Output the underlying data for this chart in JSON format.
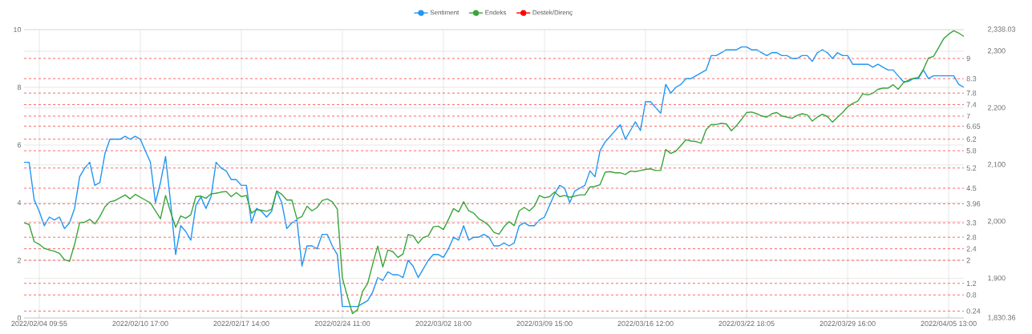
{
  "chart_data": {
    "type": "line",
    "ylim": [
      0,
      10
    ],
    "y2lim": [
      1830.36,
      2338.03
    ],
    "categories": [
      null,
      null,
      null,
      "2022/02/04 09:55",
      null,
      null,
      null,
      null,
      null,
      null,
      null,
      null,
      null,
      null,
      null,
      null,
      null,
      null,
      null,
      null,
      null,
      null,
      null,
      "2022/02/10 17:00",
      null,
      null,
      null,
      null,
      null,
      null,
      null,
      null,
      null,
      null,
      null,
      null,
      null,
      null,
      null,
      null,
      null,
      null,
      null,
      "2022/02/17 14:00",
      null,
      null,
      null,
      null,
      null,
      null,
      null,
      null,
      null,
      null,
      null,
      null,
      null,
      null,
      null,
      null,
      null,
      null,
      null,
      "2022/02/24 11:00",
      null,
      null,
      null,
      null,
      null,
      null,
      null,
      null,
      null,
      null,
      null,
      null,
      null,
      null,
      null,
      null,
      null,
      null,
      null,
      "2022/03/02 18:00",
      null,
      null,
      null,
      null,
      null,
      null,
      null,
      null,
      null,
      null,
      null,
      null,
      null,
      null,
      null,
      null,
      null,
      null,
      null,
      "2022/03/09 15:00",
      null,
      null,
      null,
      null,
      null,
      null,
      null,
      null,
      null,
      null,
      null,
      null,
      null,
      null,
      null,
      null,
      null,
      null,
      null,
      "2022/03/16 12:00",
      null,
      null,
      null,
      null,
      null,
      null,
      null,
      null,
      null,
      null,
      null,
      null,
      null,
      null,
      null,
      null,
      null,
      null,
      null,
      "2022/03/22 18:05",
      null,
      null,
      null,
      null,
      null,
      null,
      null,
      null,
      null,
      null,
      null,
      null,
      null,
      null,
      null,
      null,
      null,
      null,
      null,
      "2022/03/29 16:00",
      null,
      null,
      null,
      null,
      null,
      null,
      null,
      null,
      null,
      null,
      null,
      null,
      null,
      null,
      null,
      null,
      null,
      null,
      null,
      "2022/04/05 13:00",
      null,
      null,
      null
    ],
    "yticks": [
      0,
      2,
      4,
      6,
      8,
      10
    ],
    "y2ticks": [
      {
        "value": 1830.36,
        "label": "1,830.36"
      },
      {
        "value": 1900,
        "label": "1,900"
      },
      {
        "value": 2000,
        "label": "2,000"
      },
      {
        "value": 2100,
        "label": "2,100"
      },
      {
        "value": 2200,
        "label": "2,200"
      },
      {
        "value": 2300,
        "label": "2,300"
      },
      {
        "value": 2338.03,
        "label": "2,338.03"
      }
    ],
    "grid": true,
    "legend": "top",
    "line_style": "solid",
    "series": [
      {
        "name": "Sentiment",
        "color": "#2196f3",
        "values": [
          5.4,
          5.4,
          4.1,
          3.7,
          3.2,
          3.5,
          3.4,
          3.5,
          3.1,
          3.3,
          3.8,
          4.9,
          5.2,
          5.4,
          4.6,
          4.7,
          5.7,
          6.2,
          6.2,
          6.2,
          6.3,
          6.2,
          6.3,
          6.2,
          5.8,
          5.4,
          4.0,
          4.7,
          5.6,
          4.0,
          2.2,
          3.2,
          3.0,
          2.7,
          3.9,
          4.2,
          3.8,
          4.2,
          5.4,
          5.2,
          5.1,
          4.8,
          4.8,
          4.6,
          4.6,
          3.3,
          3.8,
          3.7,
          3.5,
          3.7,
          4.4,
          4.0,
          3.1,
          3.3,
          3.4,
          1.8,
          2.5,
          2.5,
          2.4,
          2.9,
          2.9,
          2.5,
          2.2,
          0.4,
          0.4,
          0.4,
          0.4,
          0.5,
          0.6,
          0.9,
          1.4,
          1.3,
          1.6,
          1.5,
          1.5,
          1.4,
          2.0,
          1.8,
          1.4,
          1.7,
          2.0,
          2.2,
          2.2,
          2.1,
          2.4,
          2.8,
          2.7,
          3.2,
          2.7,
          2.8,
          2.8,
          2.9,
          2.8,
          2.5,
          2.5,
          2.6,
          2.5,
          2.6,
          3.2,
          3.3,
          3.2,
          3.2,
          3.4,
          3.5,
          3.9,
          4.3,
          4.6,
          4.5,
          4.0,
          4.4,
          4.5,
          4.6,
          5.1,
          4.9,
          5.8,
          6.1,
          6.3,
          6.5,
          6.7,
          6.2,
          6.5,
          6.8,
          6.5,
          7.5,
          7.5,
          7.3,
          7.1,
          8.1,
          7.8,
          8.0,
          8.1,
          8.3,
          8.3,
          8.4,
          8.5,
          8.6,
          9.1,
          9.1,
          9.2,
          9.3,
          9.3,
          9.3,
          9.4,
          9.4,
          9.3,
          9.3,
          9.2,
          9.1,
          9.2,
          9.2,
          9.1,
          9.1,
          9.0,
          9.0,
          9.1,
          9.1,
          8.9,
          9.2,
          9.3,
          9.2,
          9.0,
          9.2,
          9.1,
          9.1,
          8.8,
          8.8,
          8.8,
          8.8,
          8.7,
          8.8,
          8.7,
          8.6,
          8.6,
          8.4,
          8.2,
          8.2,
          8.3,
          8.3,
          8.6,
          8.3,
          8.4,
          8.4,
          8.4,
          8.4,
          8.4,
          8.1,
          8.0
        ]
      },
      {
        "name": "Endeks",
        "color": "#3aa53a",
        "axis": "y2",
        "values": [
          1998,
          1995,
          1965,
          1960,
          1953,
          1950,
          1948,
          1944,
          1933,
          1930,
          1960,
          1998,
          1999,
          2004,
          1996,
          2009,
          2026,
          2035,
          2037,
          2042,
          2047,
          2040,
          2048,
          2043,
          2038,
          2033,
          2019,
          2005,
          2046,
          2017,
          1990,
          2010,
          2006,
          2012,
          2044,
          2045,
          2041,
          2049,
          2050,
          2052,
          2053,
          2044,
          2051,
          2044,
          2046,
          2015,
          2021,
          2020,
          2018,
          2022,
          2054,
          2048,
          2038,
          2038,
          2005,
          2009,
          2027,
          2019,
          2025,
          2037,
          2040,
          2035,
          2022,
          1901,
          1868,
          1838,
          1845,
          1877,
          1891,
          1925,
          1957,
          1920,
          1950,
          1947,
          1937,
          1943,
          1977,
          1975,
          1962,
          1972,
          1975,
          1991,
          1992,
          1986,
          2004,
          2023,
          2017,
          2035,
          2019,
          2015,
          2005,
          2000,
          1993,
          1981,
          1978,
          1991,
          2000,
          1993,
          2019,
          2025,
          2019,
          2027,
          2046,
          2042,
          2044,
          2052,
          2044,
          2046,
          2043,
          2045,
          2047,
          2047,
          2061,
          2062,
          2065,
          2087,
          2088,
          2086,
          2086,
          2083,
          2089,
          2088,
          2090,
          2092,
          2093,
          2090,
          2090,
          2127,
          2120,
          2124,
          2134,
          2144,
          2142,
          2141,
          2138,
          2162,
          2171,
          2171,
          2173,
          2172,
          2160,
          2169,
          2180,
          2192,
          2193,
          2190,
          2186,
          2184,
          2190,
          2192,
          2186,
          2184,
          2182,
          2187,
          2190,
          2188,
          2177,
          2184,
          2189,
          2185,
          2175,
          2184,
          2192,
          2202,
          2208,
          2212,
          2225,
          2223,
          2226,
          2233,
          2235,
          2235,
          2241,
          2233,
          2244,
          2249,
          2252,
          2254,
          2268,
          2288,
          2291,
          2306,
          2322,
          2330,
          2336,
          2332,
          2326
        ]
      },
      {
        "name": "Destek/Direnç",
        "color": "#ff0000",
        "values": [
          null,
          null,
          null,
          null,
          null,
          null,
          null,
          null,
          null,
          null,
          null,
          null,
          null,
          null,
          null,
          null,
          null,
          null,
          null,
          null,
          null,
          null,
          null,
          null,
          null,
          null,
          null,
          null,
          null,
          null,
          null,
          null,
          null,
          null,
          null,
          null,
          null,
          null,
          null,
          null,
          null,
          null,
          null,
          null,
          null,
          null,
          null,
          null,
          null,
          null,
          null,
          null,
          null,
          null,
          null,
          null,
          null,
          null,
          null,
          null,
          null,
          null,
          null,
          null,
          null,
          null,
          null,
          null,
          null,
          null,
          null,
          null,
          null,
          null,
          null,
          null,
          null,
          null,
          null,
          null,
          null,
          null,
          null,
          null,
          null,
          null,
          null,
          null,
          null,
          null,
          null,
          null,
          null,
          null,
          null,
          null,
          null,
          null,
          null,
          null,
          null,
          null,
          null,
          null,
          null,
          null,
          null,
          null,
          null,
          null,
          null,
          null,
          null,
          null,
          null,
          null,
          null,
          null,
          null,
          null,
          null,
          null,
          null,
          null,
          null,
          null,
          null,
          null,
          null,
          null,
          null,
          null,
          null,
          null,
          null,
          null,
          null,
          null,
          null,
          null,
          null,
          null,
          null,
          null,
          null,
          null,
          null,
          null,
          null,
          null,
          null,
          null,
          null,
          null,
          null,
          null,
          null,
          null,
          null,
          null,
          null,
          null,
          null,
          null,
          null,
          null,
          null,
          null,
          null,
          null,
          null,
          null,
          null,
          null,
          null,
          null,
          null,
          null,
          null,
          null,
          null,
          null,
          null,
          null,
          null,
          null,
          null
        ]
      }
    ],
    "ref_lines": [
      {
        "axis": "y",
        "value": 9,
        "label": "9",
        "color": "#ff0000",
        "line_style": "dashed"
      },
      {
        "axis": "y",
        "value": 8.3,
        "label": "8.3",
        "color": "#ff0000",
        "line_style": "dashed"
      },
      {
        "axis": "y",
        "value": 7.8,
        "label": "7.8",
        "color": "#ff0000",
        "line_style": "dashed"
      },
      {
        "axis": "y",
        "value": 7.4,
        "label": "7.4",
        "color": "#ff0000",
        "line_style": "dashed"
      },
      {
        "axis": "y",
        "value": 7,
        "label": "7",
        "color": "#ff0000",
        "line_style": "dashed"
      },
      {
        "axis": "y",
        "value": 6.65,
        "label": "6.65",
        "color": "#ff0000",
        "line_style": "dashed"
      },
      {
        "axis": "y",
        "value": 6.2,
        "label": "6.2",
        "color": "#ff0000",
        "line_style": "dashed"
      },
      {
        "axis": "y",
        "value": 5.8,
        "label": "5.8",
        "color": "#ff0000",
        "line_style": "dashed"
      },
      {
        "axis": "y",
        "value": 5.2,
        "label": "5.2",
        "color": "#ff0000",
        "line_style": "dashed"
      },
      {
        "axis": "y",
        "value": 4.5,
        "label": "4.5",
        "color": "#ff0000",
        "line_style": "dashed"
      },
      {
        "axis": "y",
        "value": 3.96,
        "label": "3.96",
        "color": "#ff0000",
        "line_style": "dashed"
      },
      {
        "axis": "y",
        "value": 3.3,
        "label": "3.3",
        "color": "#ff0000",
        "line_style": "dashed"
      },
      {
        "axis": "y",
        "value": 2.8,
        "label": "2.8",
        "color": "#ff0000",
        "line_style": "dashed"
      },
      {
        "axis": "y",
        "value": 2.4,
        "label": "2.4",
        "color": "#ff0000",
        "line_style": "dashed"
      },
      {
        "axis": "y",
        "value": 2,
        "label": "2",
        "color": "#ff0000",
        "line_style": "dashed"
      },
      {
        "axis": "y",
        "value": 1.2,
        "label": "1.2",
        "color": "#ff0000",
        "line_style": "dashed"
      },
      {
        "axis": "y",
        "value": 0.8,
        "label": "0.8",
        "color": "#ff0000",
        "line_style": "dashed"
      },
      {
        "axis": "y",
        "value": 0.24,
        "label": "0.24",
        "color": "#ff0000",
        "line_style": "dashed"
      }
    ]
  }
}
